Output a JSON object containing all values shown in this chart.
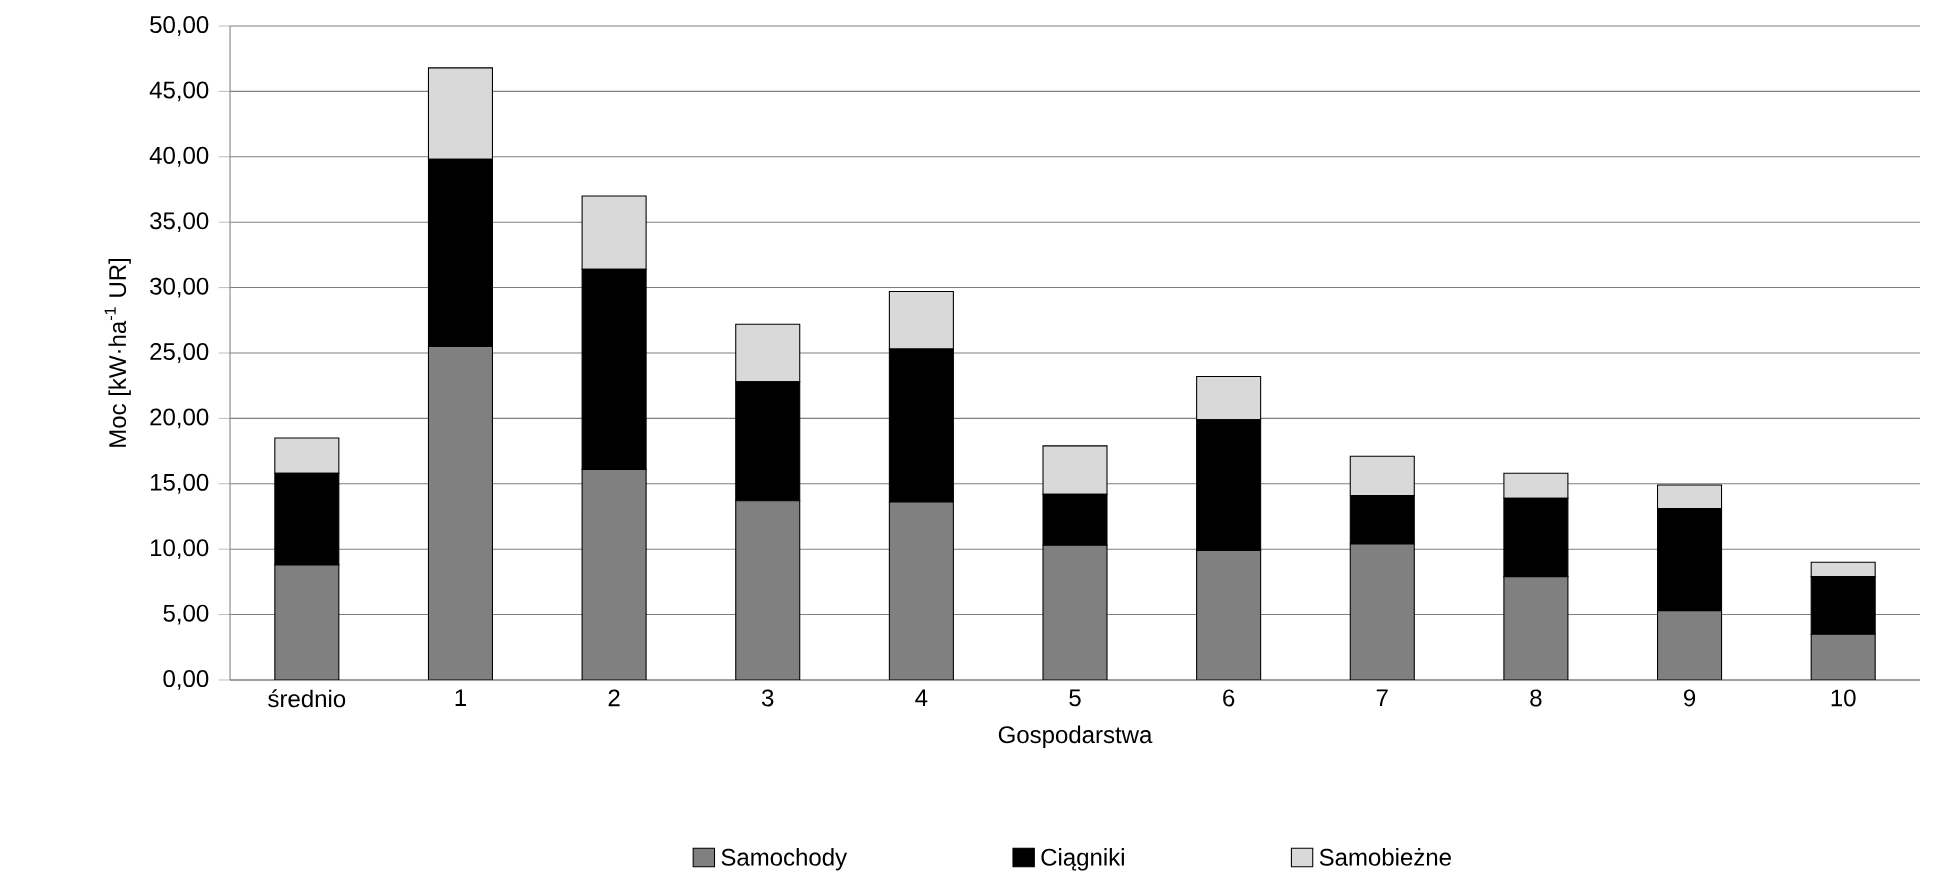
{
  "chart_data": {
    "type": "bar",
    "stacked": true,
    "xlabel": "Gospodarstwa",
    "ylabel": "Moc [kW·ha$^{-1}$ UR]",
    "categories": [
      "średnio",
      "1",
      "2",
      "3",
      "4",
      "5",
      "6",
      "7",
      "8",
      "9",
      "10"
    ],
    "series": [
      {
        "name": "Samochody",
        "color": "#808080",
        "values": [
          8.8,
          25.5,
          16.1,
          13.7,
          13.6,
          10.3,
          9.9,
          10.4,
          7.9,
          5.3,
          3.5
        ]
      },
      {
        "name": "Ciągniki",
        "color": "#000000",
        "values": [
          7.0,
          14.3,
          15.3,
          9.1,
          11.7,
          3.9,
          10.0,
          3.7,
          6.0,
          7.8,
          4.4
        ]
      },
      {
        "name": "Samobieżne",
        "color": "#d9d9d9",
        "values": [
          2.7,
          7.0,
          5.6,
          4.4,
          4.4,
          3.7,
          3.3,
          3.0,
          1.9,
          1.8,
          1.1
        ]
      }
    ],
    "ylim": [
      0,
      50
    ],
    "yticks": [
      {
        "value": 0,
        "label": "0,00"
      },
      {
        "value": 5,
        "label": "5,00"
      },
      {
        "value": 10,
        "label": "10,00"
      },
      {
        "value": 15,
        "label": "15,00"
      },
      {
        "value": 20,
        "label": "20,00"
      },
      {
        "value": 25,
        "label": "25,00"
      },
      {
        "value": 30,
        "label": "30,00"
      },
      {
        "value": 35,
        "label": "35,00"
      },
      {
        "value": 40,
        "label": "40,00"
      },
      {
        "value": 45,
        "label": "45,00"
      },
      {
        "value": 50,
        "label": "50,00"
      }
    ],
    "grid": "y",
    "legend": "bottom"
  }
}
